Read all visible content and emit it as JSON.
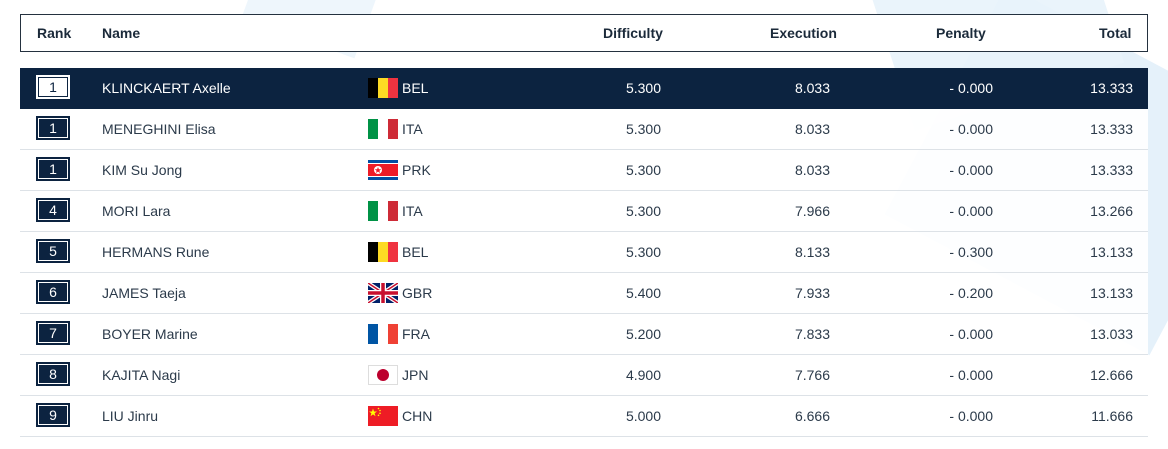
{
  "columns": {
    "rank": "Rank",
    "name": "Name",
    "difficulty": "Difficulty",
    "execution": "Execution",
    "penalty": "Penalty",
    "total": "Total"
  },
  "colors": {
    "selected_row": "#0c2340",
    "accent": "#0c2340"
  },
  "rows": [
    {
      "rank": "1",
      "name": "KLINCKAERT Axelle",
      "noc": "BEL",
      "flag": "bel-flag-icon",
      "difficulty": "5.300",
      "execution": "8.033",
      "penalty": "- 0.000",
      "total": "13.333",
      "selected": true
    },
    {
      "rank": "1",
      "name": "MENEGHINI Elisa",
      "noc": "ITA",
      "flag": "ita-flag-icon",
      "difficulty": "5.300",
      "execution": "8.033",
      "penalty": "- 0.000",
      "total": "13.333"
    },
    {
      "rank": "1",
      "name": "KIM Su Jong",
      "noc": "PRK",
      "flag": "prk-flag-icon",
      "difficulty": "5.300",
      "execution": "8.033",
      "penalty": "- 0.000",
      "total": "13.333"
    },
    {
      "rank": "4",
      "name": "MORI Lara",
      "noc": "ITA",
      "flag": "ita-flag-icon",
      "difficulty": "5.300",
      "execution": "7.966",
      "penalty": "- 0.000",
      "total": "13.266"
    },
    {
      "rank": "5",
      "name": "HERMANS Rune",
      "noc": "BEL",
      "flag": "bel-flag-icon",
      "difficulty": "5.300",
      "execution": "8.133",
      "penalty": "- 0.300",
      "total": "13.133"
    },
    {
      "rank": "6",
      "name": "JAMES Taeja",
      "noc": "GBR",
      "flag": "gbr-flag-icon",
      "difficulty": "5.400",
      "execution": "7.933",
      "penalty": "- 0.200",
      "total": "13.133"
    },
    {
      "rank": "7",
      "name": "BOYER Marine",
      "noc": "FRA",
      "flag": "fra-flag-icon",
      "difficulty": "5.200",
      "execution": "7.833",
      "penalty": "- 0.000",
      "total": "13.033"
    },
    {
      "rank": "8",
      "name": "KAJITA Nagi",
      "noc": "JPN",
      "flag": "jpn-flag-icon",
      "difficulty": "4.900",
      "execution": "7.766",
      "penalty": "- 0.000",
      "total": "12.666"
    },
    {
      "rank": "9",
      "name": "LIU Jinru",
      "noc": "CHN",
      "flag": "chn-flag-icon",
      "difficulty": "5.000",
      "execution": "6.666",
      "penalty": "- 0.000",
      "total": "11.666"
    }
  ]
}
